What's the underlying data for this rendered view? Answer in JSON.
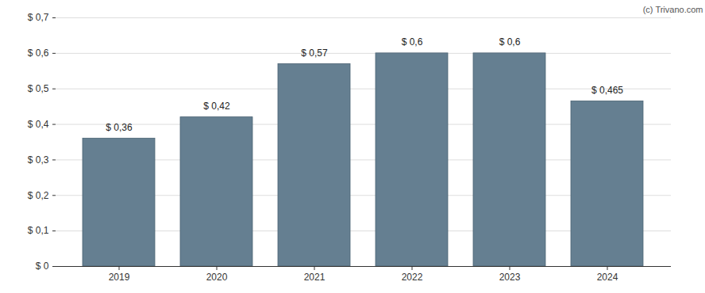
{
  "chart_data": {
    "type": "bar",
    "caption": "(c) Trivano.com",
    "categories": [
      "2019",
      "2020",
      "2021",
      "2022",
      "2023",
      "2024"
    ],
    "values": [
      0.36,
      0.42,
      0.57,
      0.6,
      0.6,
      0.465
    ],
    "value_labels": [
      "$ 0,36",
      "$ 0,42",
      "$ 0,57",
      "$ 0,6",
      "$ 0,6",
      "$ 0,465"
    ],
    "color": "#657f91",
    "ylim": [
      0,
      0.7
    ],
    "yticks": [
      {
        "value": 0,
        "label": "$ 0"
      },
      {
        "value": 0.1,
        "label": "$ 0,1"
      },
      {
        "value": 0.2,
        "label": "$ 0,2"
      },
      {
        "value": 0.3,
        "label": "$ 0,3"
      },
      {
        "value": 0.4,
        "label": "$ 0,4"
      },
      {
        "value": 0.5,
        "label": "$ 0,5"
      },
      {
        "value": 0.6,
        "label": "$ 0,6"
      },
      {
        "value": 0.7,
        "label": "$ 0,7"
      }
    ],
    "grid": true,
    "data_labels": true
  }
}
